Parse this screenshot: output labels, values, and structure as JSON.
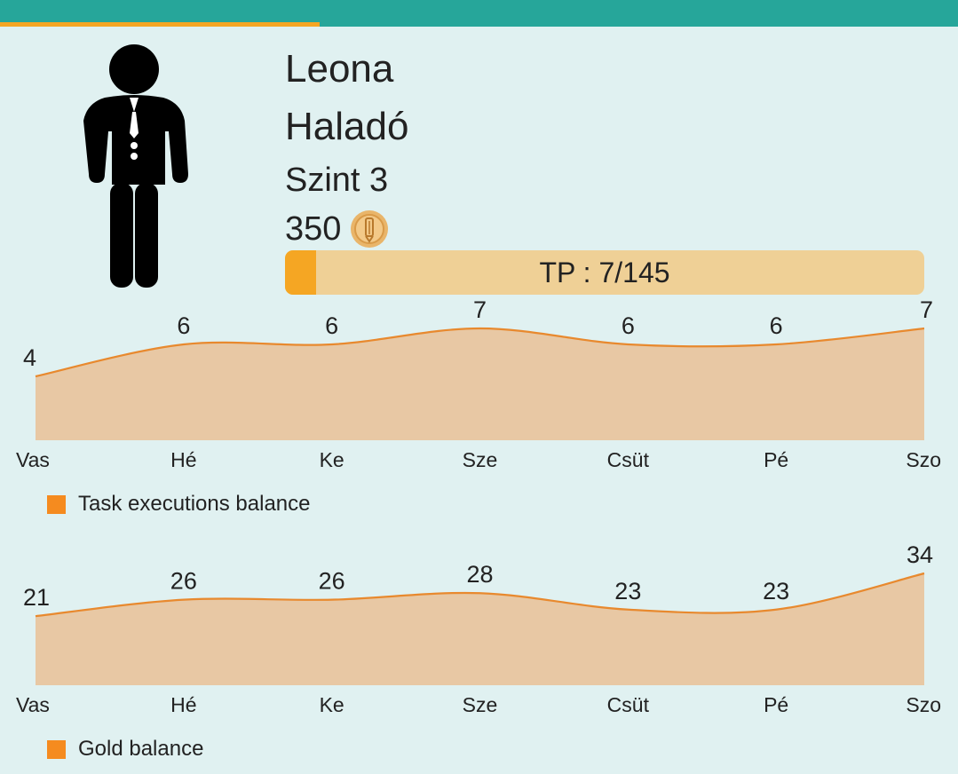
{
  "profile": {
    "name": "Leona",
    "rank": "Haladó",
    "level": "Szint 3",
    "gold": "350",
    "tp_label": "TP : 7/145",
    "tp_current": 7,
    "tp_max": 145,
    "avatar_icon": "businessman-icon",
    "coin_icon": "gold-coin-icon"
  },
  "colors": {
    "header": "#26a69a",
    "accent": "#f5a623",
    "bar_track": "#efd096",
    "series_line": "#e8892e",
    "series_fill": "#e8c8a4",
    "legend": "#f58b1f",
    "background": "#e0f1f1"
  },
  "chart_data": [
    {
      "type": "area",
      "categories": [
        "Vas",
        "Hé",
        "Ke",
        "Sze",
        "Csüt",
        "Pé",
        "Szo"
      ],
      "series": [
        {
          "name": "Task executions balance",
          "values": [
            4,
            6,
            6,
            7,
            6,
            6,
            7
          ]
        }
      ],
      "value_labels": [
        "4",
        "6",
        "6",
        "7",
        "6",
        "6",
        "7"
      ],
      "legend": "bottom-left",
      "grid": false
    },
    {
      "type": "area",
      "categories": [
        "Vas",
        "Hé",
        "Ke",
        "Sze",
        "Csüt",
        "Pé",
        "Szo"
      ],
      "series": [
        {
          "name": "Gold balance",
          "values": [
            21,
            26,
            26,
            28,
            23,
            23,
            34
          ]
        }
      ],
      "value_labels": [
        "21",
        "26",
        "26",
        "28",
        "23",
        "23",
        "34"
      ],
      "legend": "bottom-left",
      "grid": false
    }
  ]
}
